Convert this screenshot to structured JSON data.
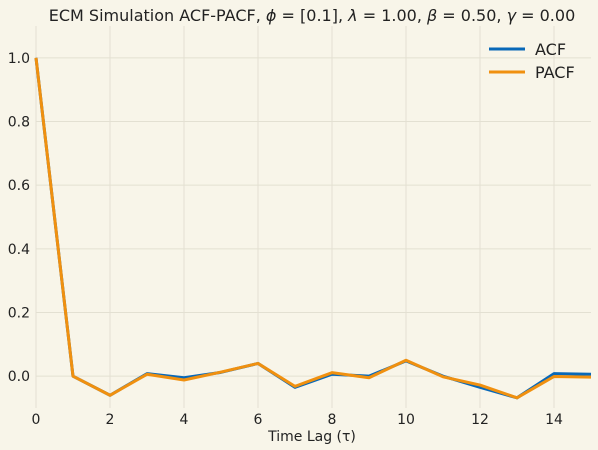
{
  "chart_data": {
    "type": "line",
    "title_parts": {
      "prefix": "ECM Simulation ACF-PACF, ",
      "phi_sym": "ϕ",
      "phi_val": " = [0.1], ",
      "lambda_sym": "λ",
      "lambda_val": " = 1.00, ",
      "beta_sym": "β",
      "beta_val": " = 0.50, ",
      "gamma_sym": "γ",
      "gamma_val": " = 0.00"
    },
    "xlabel": "Time Lag (τ)",
    "ylabel": "",
    "xlim": [
      0,
      15
    ],
    "ylim": [
      -0.1,
      1.1
    ],
    "xticks": [
      0,
      2,
      4,
      6,
      8,
      10,
      12,
      14
    ],
    "yticks": [
      0.0,
      0.2,
      0.4,
      0.6,
      0.8,
      1.0
    ],
    "xtick_labels": [
      "0",
      "2",
      "4",
      "6",
      "8",
      "10",
      "12",
      "14"
    ],
    "ytick_labels": [
      "0.0",
      "0.2",
      "0.4",
      "0.6",
      "0.8",
      "1.0"
    ],
    "grid": true,
    "legend_position": "top-right",
    "x": [
      0,
      1,
      2,
      3,
      4,
      5,
      6,
      7,
      8,
      9,
      10,
      11,
      12,
      13,
      14,
      15
    ],
    "series": [
      {
        "name": "ACF",
        "color": "#0868b8",
        "values": [
          1.0,
          0.0,
          -0.06,
          0.008,
          -0.005,
          0.012,
          0.04,
          -0.035,
          0.006,
          0.0,
          0.048,
          0.0,
          -0.035,
          -0.068,
          0.008,
          0.006
        ]
      },
      {
        "name": "PACF",
        "color": "#f0900f",
        "values": [
          1.0,
          0.0,
          -0.06,
          0.006,
          -0.012,
          0.013,
          0.04,
          -0.032,
          0.011,
          -0.005,
          0.05,
          -0.002,
          -0.028,
          -0.068,
          -0.001,
          -0.003
        ]
      }
    ]
  },
  "colors": {
    "background": "#f8f5e9",
    "grid": "#e3e0d2",
    "text": "#222222"
  }
}
